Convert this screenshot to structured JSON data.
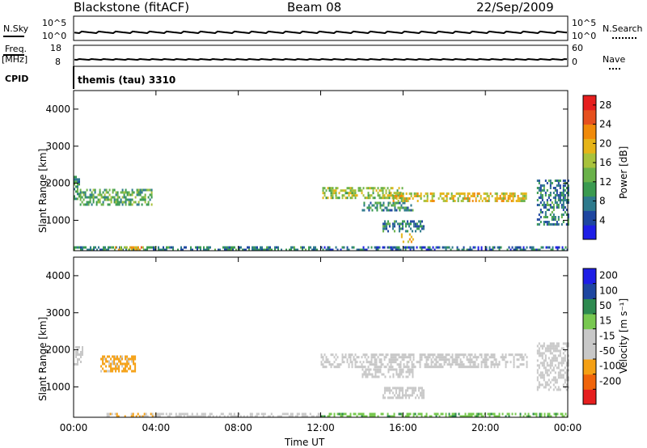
{
  "header": {
    "station": "Blackstone (fitACF)",
    "beam": "Beam 08",
    "date": "22/Sep/2009"
  },
  "side_labels": {
    "nsky": "N.Sky",
    "nsearch": "N.Search",
    "freq_line1": "Freq.",
    "freq_line2": "[MHz]",
    "nave": "Nave",
    "cpid": "CPID"
  },
  "cpid_text": "themis (tau) 3310",
  "noise_axis": {
    "left_top": "10^5",
    "left_bottom": "10^0",
    "right_top": "10^5",
    "right_bottom": "10^0"
  },
  "freq_axis": {
    "left_top": "18",
    "left_bottom": "8",
    "right_top": "60",
    "right_bottom": "0"
  },
  "colors": {
    "power": [
      "#1e1ee6",
      "#1e46a0",
      "#2e7a8c",
      "#3a9a50",
      "#6ab24a",
      "#a8c23c",
      "#e6b418",
      "#f08a0a",
      "#e6501e",
      "#e61e1e"
    ],
    "velocity": [
      "#e61e1e",
      "#f0640a",
      "#f5a014",
      "#c8c8c8",
      "#c8c8c8",
      "#78c850",
      "#2e8a50",
      "#1e46a0",
      "#1e1ee6"
    ],
    "ground": "#b0b0b0"
  },
  "chart_data": [
    {
      "type": "heatmap",
      "title": "",
      "xlabel": "",
      "ylabel": "Slant Range [km]",
      "xlim": [
        "00:00",
        "24:00"
      ],
      "ylim": [
        180,
        4500
      ],
      "x_ticks": [
        "00:00",
        "04:00",
        "08:00",
        "12:00",
        "16:00",
        "20:00",
        "00:00"
      ],
      "y_ticks": [
        "1000",
        "2000",
        "3000",
        "4000"
      ],
      "colorbar": {
        "label": "Power [dB]",
        "range": [
          0,
          30
        ],
        "ticks": [
          "4",
          "8",
          "12",
          "16",
          "20",
          "24",
          "28"
        ]
      },
      "regions": [
        {
          "t": [
            0.0,
            0.3
          ],
          "range": [
            1600,
            2200
          ],
          "value": 10
        },
        {
          "t": [
            0.3,
            3.8
          ],
          "range": [
            1400,
            1850
          ],
          "value": 12
        },
        {
          "t": [
            0.0,
            11.8
          ],
          "range": [
            200,
            300
          ],
          "value": 8
        },
        {
          "t": [
            2.0,
            3.4
          ],
          "range": [
            200,
            300
          ],
          "value": 20
        },
        {
          "t": [
            12.0,
            16.0
          ],
          "range": [
            1600,
            1900
          ],
          "value": 16
        },
        {
          "t": [
            14.0,
            16.5
          ],
          "range": [
            1300,
            1500
          ],
          "value": 10
        },
        {
          "t": [
            15.5,
            22.0
          ],
          "range": [
            1550,
            1750
          ],
          "value": 18
        },
        {
          "t": [
            15.0,
            17.0
          ],
          "range": [
            700,
            1000
          ],
          "value": 8
        },
        {
          "t": [
            15.9,
            16.5
          ],
          "range": [
            450,
            650
          ],
          "value": 22
        },
        {
          "t": [
            22.5,
            24.0
          ],
          "range": [
            900,
            2100
          ],
          "value": 8
        },
        {
          "t": [
            12.0,
            24.0
          ],
          "range": [
            200,
            300
          ],
          "value": 6
        }
      ]
    },
    {
      "type": "heatmap",
      "title": "",
      "xlabel": "Time UT",
      "ylabel": "Slant Range [km]",
      "xlim": [
        "00:00",
        "24:00"
      ],
      "ylim": [
        180,
        4500
      ],
      "x_ticks": [
        "00:00",
        "04:00",
        "08:00",
        "12:00",
        "16:00",
        "20:00",
        "00:00"
      ],
      "y_ticks": [
        "1000",
        "2000",
        "3000",
        "4000"
      ],
      "colorbar": {
        "label": "Velocity [m s⁻¹]",
        "ticks": [
          "200",
          "100",
          "50",
          "15",
          "-15",
          "-50",
          "-100",
          "-200"
        ]
      },
      "regions": [
        {
          "t": [
            1.3,
            3.0
          ],
          "range": [
            1450,
            1850
          ],
          "value": -60
        },
        {
          "t": [
            0.0,
            0.4
          ],
          "range": [
            1600,
            2100
          ],
          "value": 0
        },
        {
          "t": [
            1.6,
            4.0
          ],
          "range": [
            200,
            300
          ],
          "value": -50
        },
        {
          "t": [
            4.0,
            12.0
          ],
          "range": [
            200,
            300
          ],
          "value": -20
        },
        {
          "t": [
            12.0,
            22.0
          ],
          "range": [
            1550,
            1900
          ],
          "value": 0
        },
        {
          "t": [
            14.0,
            16.5
          ],
          "range": [
            1300,
            1500
          ],
          "value": 0
        },
        {
          "t": [
            15.0,
            17.0
          ],
          "range": [
            700,
            1000
          ],
          "value": 0
        },
        {
          "t": [
            12.0,
            24.0
          ],
          "range": [
            200,
            300
          ],
          "value": 40
        },
        {
          "t": [
            22.5,
            24.0
          ],
          "range": [
            900,
            2200
          ],
          "value": 0
        }
      ]
    }
  ]
}
